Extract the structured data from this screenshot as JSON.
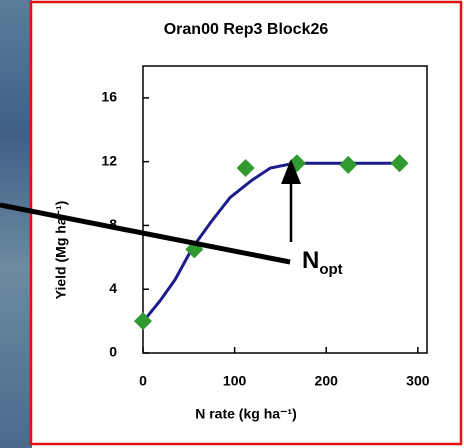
{
  "chart_data": {
    "type": "scatter",
    "title": "Oran00 Rep3 Block26",
    "x_label": "N rate (kg ha⁻¹)",
    "y_label": "Yield (Mg ha⁻¹)",
    "x": [
      0,
      56,
      112,
      168,
      224,
      280
    ],
    "values": [
      2.0,
      6.5,
      11.6,
      11.9,
      11.8,
      11.9
    ],
    "color": "#2f9a2f",
    "fit": {
      "color": "#1c1c8a",
      "x": [
        2,
        19,
        35,
        54,
        74,
        95,
        118,
        139,
        165,
        278
      ],
      "values": [
        2.1,
        3.3,
        4.6,
        6.6,
        8.2,
        9.75,
        10.8,
        11.6,
        11.9,
        11.9
      ]
    },
    "xlim": [
      0,
      310
    ],
    "xticks": [
      0,
      100,
      200,
      300
    ],
    "ylim": [
      0,
      18
    ],
    "yticks": [
      0,
      4,
      8,
      12,
      16
    ],
    "annotation": {
      "text": "N",
      "subscript": "opt"
    }
  }
}
